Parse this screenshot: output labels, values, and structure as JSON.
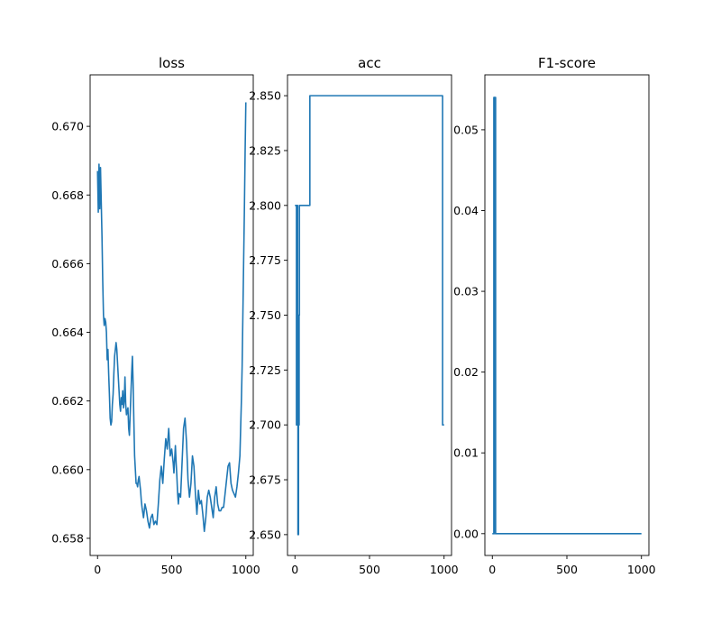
{
  "colors": {
    "line": "#1f77b4",
    "axes": "#000000",
    "background": "#ffffff"
  },
  "chart_data": [
    {
      "type": "line",
      "title": "loss",
      "xlabel": "",
      "ylabel": "",
      "grid": false,
      "xlim": [
        -50,
        1050
      ],
      "ylim": [
        0.6575,
        0.6715
      ],
      "xticks": [
        0,
        500,
        1000
      ],
      "xtick_labels": [
        "0",
        "500",
        "1000"
      ],
      "yticks": [
        0.658,
        0.66,
        0.662,
        0.664,
        0.666,
        0.668,
        0.67
      ],
      "ytick_labels": [
        "0.658",
        "0.660",
        "0.662",
        "0.664",
        "0.666",
        "0.668",
        "0.670"
      ],
      "series": [
        {
          "x": [
            0,
            5,
            10,
            15,
            20,
            25,
            30,
            35,
            40,
            45,
            50,
            55,
            60,
            65,
            70,
            75,
            80,
            85,
            90,
            95,
            100,
            105,
            110,
            115,
            120,
            125,
            130,
            135,
            140,
            145,
            150,
            155,
            160,
            165,
            170,
            175,
            180,
            185,
            190,
            195,
            200,
            205,
            210,
            215,
            220,
            225,
            230,
            235,
            240,
            245,
            250,
            255,
            260,
            265,
            270,
            275,
            280,
            285,
            290,
            295,
            300,
            310,
            320,
            330,
            340,
            350,
            360,
            370,
            380,
            390,
            400,
            410,
            420,
            430,
            440,
            450,
            460,
            470,
            480,
            490,
            500,
            505,
            510,
            515,
            520,
            525,
            530,
            535,
            540,
            545,
            550,
            560,
            570,
            580,
            590,
            600,
            610,
            620,
            630,
            640,
            650,
            660,
            670,
            680,
            690,
            700,
            710,
            720,
            730,
            740,
            750,
            760,
            770,
            780,
            790,
            800,
            810,
            820,
            830,
            840,
            850,
            860,
            870,
            880,
            890,
            900,
            910,
            920,
            930,
            940,
            950,
            960,
            965,
            970,
            975,
            980,
            985,
            990,
            995,
            1000
          ],
          "y": [
            0.6687,
            0.6675,
            0.6689,
            0.6676,
            0.6688,
            0.6678,
            0.6668,
            0.6655,
            0.6645,
            0.6642,
            0.6644,
            0.6643,
            0.664,
            0.6632,
            0.6635,
            0.6628,
            0.6622,
            0.6615,
            0.6613,
            0.6614,
            0.6619,
            0.6622,
            0.6628,
            0.6633,
            0.6635,
            0.6637,
            0.6635,
            0.6631,
            0.6627,
            0.6623,
            0.6619,
            0.6617,
            0.6621,
            0.6619,
            0.6623,
            0.6618,
            0.662,
            0.6627,
            0.6619,
            0.6616,
            0.6617,
            0.6618,
            0.6612,
            0.661,
            0.6616,
            0.6622,
            0.6628,
            0.6633,
            0.6625,
            0.6614,
            0.6604,
            0.66,
            0.6596,
            0.6596,
            0.6595,
            0.6597,
            0.6598,
            0.6596,
            0.6594,
            0.6591,
            0.6589,
            0.6586,
            0.659,
            0.6588,
            0.6585,
            0.6583,
            0.6586,
            0.6587,
            0.6584,
            0.6585,
            0.6584,
            0.659,
            0.6597,
            0.6601,
            0.6596,
            0.6603,
            0.6609,
            0.6606,
            0.6612,
            0.6604,
            0.6606,
            0.6604,
            0.6602,
            0.6599,
            0.6603,
            0.6607,
            0.6602,
            0.6598,
            0.6593,
            0.659,
            0.6593,
            0.6592,
            0.6602,
            0.6612,
            0.6615,
            0.6608,
            0.6597,
            0.6592,
            0.6596,
            0.6604,
            0.6601,
            0.6593,
            0.6587,
            0.6594,
            0.659,
            0.6591,
            0.6587,
            0.6582,
            0.6586,
            0.6592,
            0.6594,
            0.6592,
            0.6589,
            0.6586,
            0.6592,
            0.6595,
            0.659,
            0.6588,
            0.6588,
            0.6589,
            0.6589,
            0.6593,
            0.6597,
            0.6601,
            0.6602,
            0.6596,
            0.6594,
            0.6593,
            0.6592,
            0.6595,
            0.6599,
            0.6604,
            0.6612,
            0.662,
            0.663,
            0.6645,
            0.666,
            0.6675,
            0.6692,
            0.6707
          ]
        }
      ]
    },
    {
      "type": "line",
      "title": "acc",
      "xlabel": "",
      "ylabel": "",
      "grid": false,
      "xlim": [
        -50,
        1050
      ],
      "ylim": [
        2.6405,
        2.8595
      ],
      "xticks": [
        0,
        500,
        1000
      ],
      "xtick_labels": [
        "0",
        "500",
        "1000"
      ],
      "yticks": [
        2.65,
        2.675,
        2.7,
        2.725,
        2.75,
        2.775,
        2.8,
        2.825,
        2.85
      ],
      "ytick_labels": [
        "2.650",
        "2.675",
        "2.700",
        "2.725",
        "2.750",
        "2.775",
        "2.800",
        "2.825",
        "2.850"
      ],
      "series": [
        {
          "x": [
            0,
            10,
            10,
            14,
            14,
            18,
            18,
            20,
            20,
            24,
            24,
            26,
            26,
            28,
            28,
            30,
            30,
            100,
            100,
            990,
            990,
            1000
          ],
          "y": [
            2.8,
            2.8,
            2.7,
            2.7,
            2.8,
            2.8,
            2.75,
            2.75,
            2.65,
            2.65,
            2.75,
            2.75,
            2.7,
            2.7,
            2.75,
            2.75,
            2.8,
            2.8,
            2.85,
            2.85,
            2.7,
            2.7
          ]
        }
      ]
    },
    {
      "type": "line",
      "title": "F1-score",
      "xlabel": "",
      "ylabel": "",
      "grid": false,
      "xlim": [
        -50,
        1050
      ],
      "ylim": [
        -0.0027,
        0.0568
      ],
      "xticks": [
        0,
        500,
        1000
      ],
      "xtick_labels": [
        "0",
        "500",
        "1000"
      ],
      "yticks": [
        0,
        0.01,
        0.02,
        0.03,
        0.04,
        0.05
      ],
      "ytick_labels": [
        "0.00",
        "0.01",
        "0.02",
        "0.03",
        "0.04",
        "0.05"
      ],
      "series": [
        {
          "x": [
            0,
            10,
            10,
            14,
            14,
            18,
            18,
            22,
            22,
            26,
            26,
            1000
          ],
          "y": [
            0.0,
            0.0,
            0.054,
            0.054,
            0.0,
            0.0,
            0.054,
            0.054,
            0.0,
            0.0,
            0.0,
            0.0
          ]
        }
      ]
    }
  ]
}
